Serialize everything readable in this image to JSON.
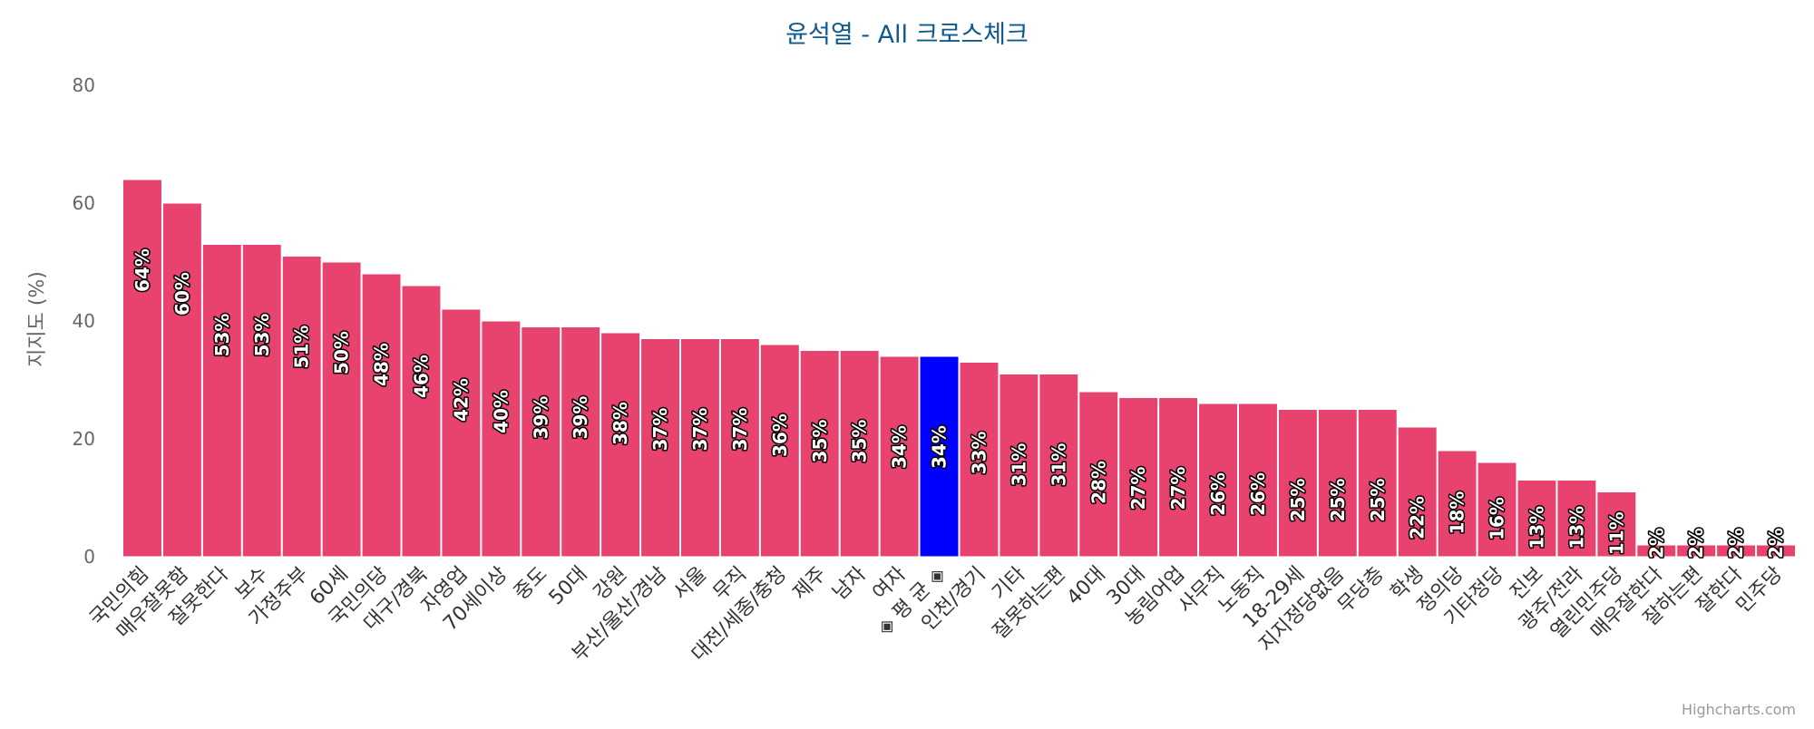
{
  "chart_data": {
    "type": "bar",
    "title": "윤석열 - All 크로스체크",
    "ylabel": "지지도 (%)",
    "xlabel": "",
    "ylim": [
      0,
      80
    ],
    "yticks": [
      0,
      20,
      40,
      60,
      80
    ],
    "grid": false,
    "legend": false,
    "series_color": "#e8436f",
    "highlight_color": "#0000ff",
    "highlight_category": "◈ 평 균 ◈",
    "categories": [
      "국민의힘",
      "매우잘못함",
      "잘못한다",
      "보수",
      "가정주부",
      "60세",
      "국민의당",
      "대구/경북",
      "자영업",
      "70세이상",
      "중도",
      "50대",
      "강원",
      "부산/울산/경남",
      "서울",
      "무직",
      "대전/세종/충청",
      "제주",
      "남자",
      "여자",
      "◈ 평 균 ◈",
      "인천/경기",
      "기타",
      "잘못하는편",
      "40대",
      "30대",
      "농림어업",
      "사무직",
      "노동직",
      "18-29세",
      "지지정당없음",
      "무당층",
      "학생",
      "정의당",
      "기타정당",
      "진보",
      "광주/전라",
      "열린민주당",
      "매우잘한다",
      "잘하는편",
      "잘한다",
      "민주당"
    ],
    "values": [
      64,
      60,
      53,
      53,
      51,
      50,
      48,
      46,
      42,
      40,
      39,
      39,
      38,
      37,
      37,
      37,
      36,
      35,
      35,
      34,
      34,
      33,
      31,
      31,
      28,
      27,
      27,
      26,
      26,
      25,
      25,
      25,
      22,
      18,
      16,
      13,
      13,
      11,
      2,
      2,
      2,
      2
    ],
    "data_labels": [
      "64%",
      "60%",
      "53%",
      "53%",
      "51%",
      "50%",
      "48%",
      "46%",
      "42%",
      "40%",
      "39%",
      "39%",
      "38%",
      "37%",
      "37%",
      "37%",
      "36%",
      "35%",
      "35%",
      "34%",
      "34%",
      "33%",
      "31%",
      "31%",
      "28%",
      "27%",
      "27%",
      "26%",
      "26%",
      "25%",
      "25%",
      "25%",
      "22%",
      "18%",
      "16%",
      "13%",
      "13%",
      "11%",
      "2%",
      "2%",
      "2%",
      "2%"
    ]
  },
  "credits": "Highcharts.com"
}
